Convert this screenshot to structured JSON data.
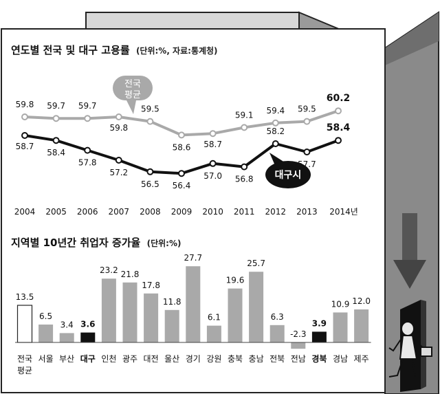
{
  "line_panel": {
    "title": "연도별 전국 및 대구 고용률",
    "note": "(단위:%, 자료:통계청)",
    "national_tag_1": "전국",
    "national_tag_2": "평균",
    "daegu_tag": "대구시",
    "last_year_suffix": "년"
  },
  "bar_panel": {
    "title": "지역별 10년간 취업자 증가율",
    "note": "(단위:%)"
  },
  "colors": {
    "national_line": "#a9a9a9",
    "daegu_line": "#111111",
    "bar_gray": "#a9a9a9",
    "bar_highlight": "#111111",
    "bar_national": "#ffffff",
    "panel_background": "#ffffff",
    "side_shade": "#8a8a8a"
  },
  "icons": [
    "down-arrow-icon",
    "exit-door-icon",
    "walking-man-with-briefcase-icon"
  ],
  "chart_data": [
    {
      "type": "line",
      "x": [
        2004,
        2005,
        2006,
        2007,
        2008,
        2009,
        2010,
        2011,
        2012,
        2013,
        2014
      ],
      "x_tick_labels": [
        "2004",
        "2005",
        "2006",
        "2007",
        "2008",
        "2009",
        "2010",
        "2011",
        "2012",
        "2013",
        "2014"
      ],
      "series": [
        {
          "name": "전국 평균",
          "color": "#a9a9a9",
          "values": [
            59.8,
            59.7,
            59.7,
            59.8,
            59.5,
            58.6,
            58.7,
            59.1,
            59.4,
            59.5,
            60.2
          ],
          "labels": [
            "59.8",
            "59.7",
            "59.7",
            "59.8",
            "59.5",
            "58.6",
            "58.7",
            "59.1",
            "59.4",
            "59.5",
            "60.2"
          ]
        },
        {
          "name": "대구시",
          "color": "#111111",
          "values": [
            58.7,
            58.4,
            57.8,
            57.2,
            56.5,
            56.4,
            57.0,
            56.8,
            58.2,
            57.7,
            58.4
          ],
          "labels": [
            "58.7",
            "58.4",
            "57.8",
            "57.2",
            "56.5",
            "56.4",
            "57.0",
            "56.8",
            "58.2",
            "57.7",
            "58.4"
          ]
        }
      ],
      "ylim": [
        56.0,
        60.5
      ],
      "grid": false
    },
    {
      "type": "bar",
      "categories": [
        "전국 평균",
        "서울",
        "부산",
        "대구",
        "인천",
        "광주",
        "대전",
        "울산",
        "경기",
        "강원",
        "충북",
        "충남",
        "전북",
        "전남",
        "경북",
        "경남",
        "제주"
      ],
      "values": [
        13.5,
        6.5,
        3.4,
        3.6,
        23.2,
        21.8,
        17.8,
        11.8,
        27.7,
        6.1,
        19.6,
        25.7,
        6.3,
        -2.3,
        3.9,
        10.9,
        12.0
      ],
      "value_labels": [
        "13.5",
        "6.5",
        "3.4",
        "3.6",
        "23.2",
        "21.8",
        "17.8",
        "11.8",
        "27.7",
        "6.1",
        "19.6",
        "25.7",
        "6.3",
        "-2.3",
        "3.9",
        "10.9",
        "12.0"
      ],
      "highlighted": [
        "대구",
        "경북"
      ],
      "reference_category": "전국 평균",
      "ylim": [
        -3,
        30
      ],
      "grid": false
    }
  ]
}
